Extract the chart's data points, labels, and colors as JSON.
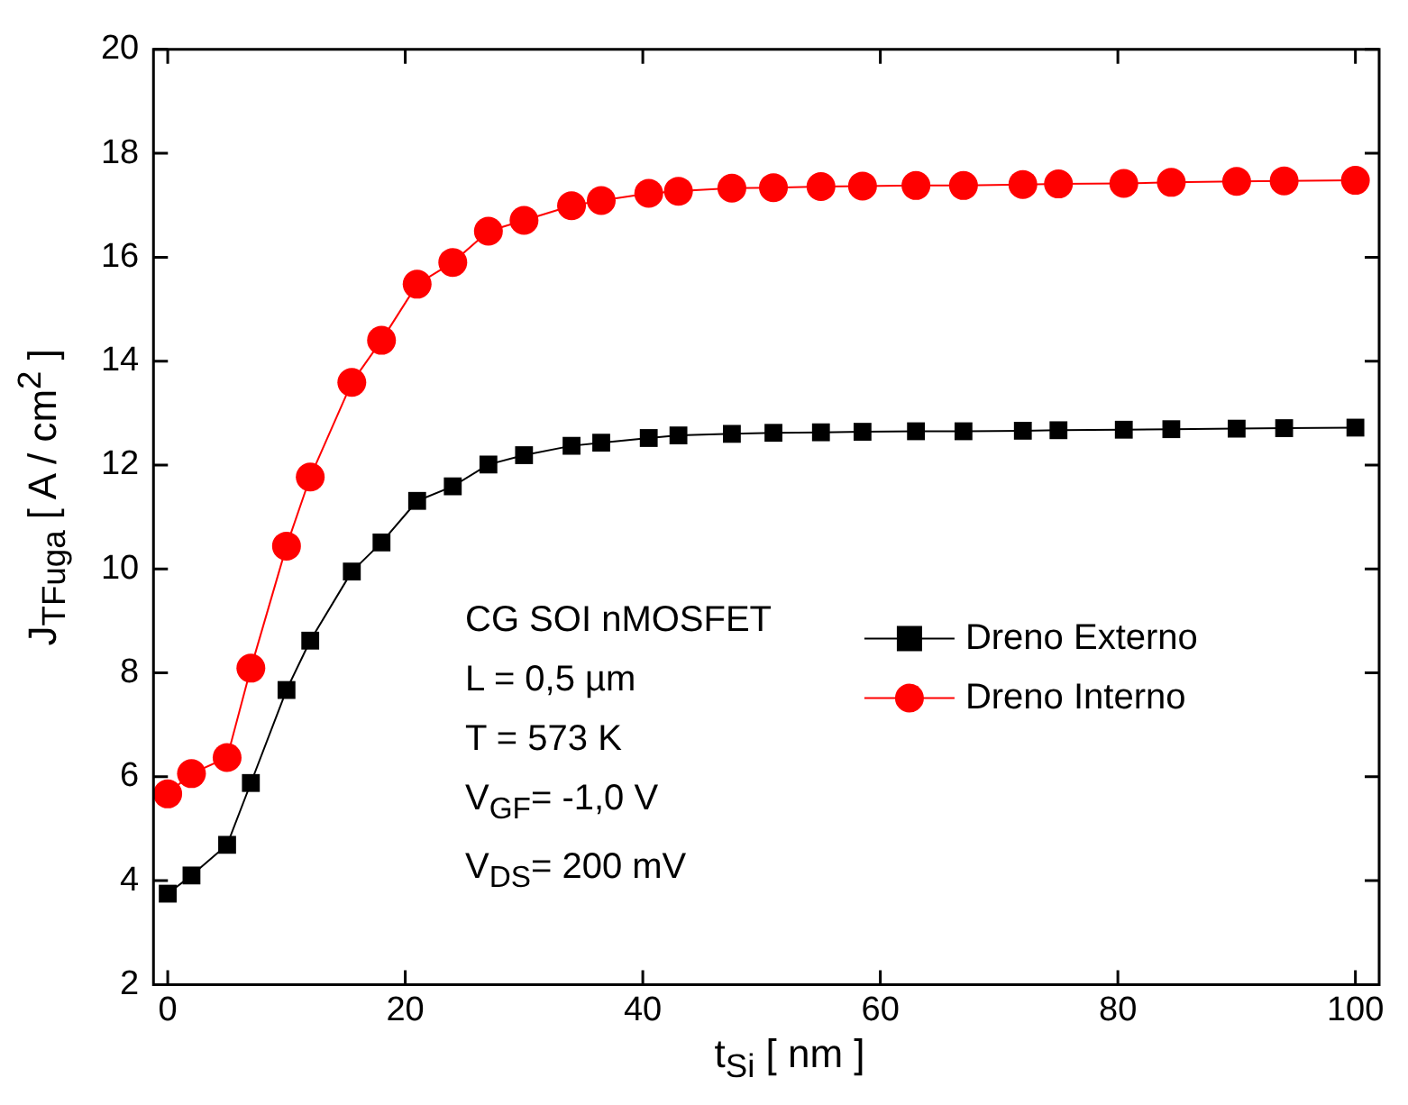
{
  "chart_data": {
    "type": "line",
    "xlabel": "t$_{Si}$ [ nm ]",
    "ylabel": "J$_{TFuga}$ [ A / cm$^{2}$ ]",
    "x": [
      0,
      2,
      5,
      7,
      10,
      12,
      15.5,
      18,
      21,
      24,
      27,
      30,
      34,
      36.5,
      40.5,
      43,
      47.5,
      51,
      55,
      58.5,
      63,
      67,
      72,
      75,
      80.5,
      84.5,
      90,
      94,
      100
    ],
    "series": [
      {
        "name": "Dreno Externo",
        "color": "#000000",
        "marker": "square",
        "values": [
          3.75,
          4.1,
          4.69,
          5.88,
          7.67,
          8.62,
          9.95,
          10.51,
          11.31,
          11.59,
          12.01,
          12.19,
          12.37,
          12.43,
          12.52,
          12.57,
          12.6,
          12.62,
          12.63,
          12.64,
          12.65,
          12.65,
          12.66,
          12.67,
          12.68,
          12.69,
          12.7,
          12.71,
          12.72
        ]
      },
      {
        "name": "Dreno Interno",
        "color": "#ff0000",
        "marker": "circle",
        "values": [
          5.67,
          6.06,
          6.37,
          8.09,
          10.44,
          11.77,
          13.59,
          14.4,
          15.48,
          15.9,
          16.5,
          16.71,
          16.99,
          17.09,
          17.23,
          17.27,
          17.33,
          17.34,
          17.36,
          17.37,
          17.38,
          17.38,
          17.4,
          17.41,
          17.42,
          17.44,
          17.46,
          17.47,
          17.48
        ]
      }
    ],
    "xlim": [
      -1.2,
      102
    ],
    "ylim": [
      2,
      20
    ],
    "xticks": [
      0,
      20,
      40,
      60,
      80,
      100
    ],
    "yticks": [
      2,
      4,
      6,
      8,
      10,
      12,
      14,
      16,
      18,
      20
    ],
    "grid": false,
    "legend": "right",
    "line_style": "solid",
    "annotations": [
      "CG SOI nMOSFET",
      "L = 0,5 µm",
      "T = 573 K",
      "V$_{GF}$= -1,0 V",
      "V$_{DS}$= 200 mV"
    ]
  }
}
